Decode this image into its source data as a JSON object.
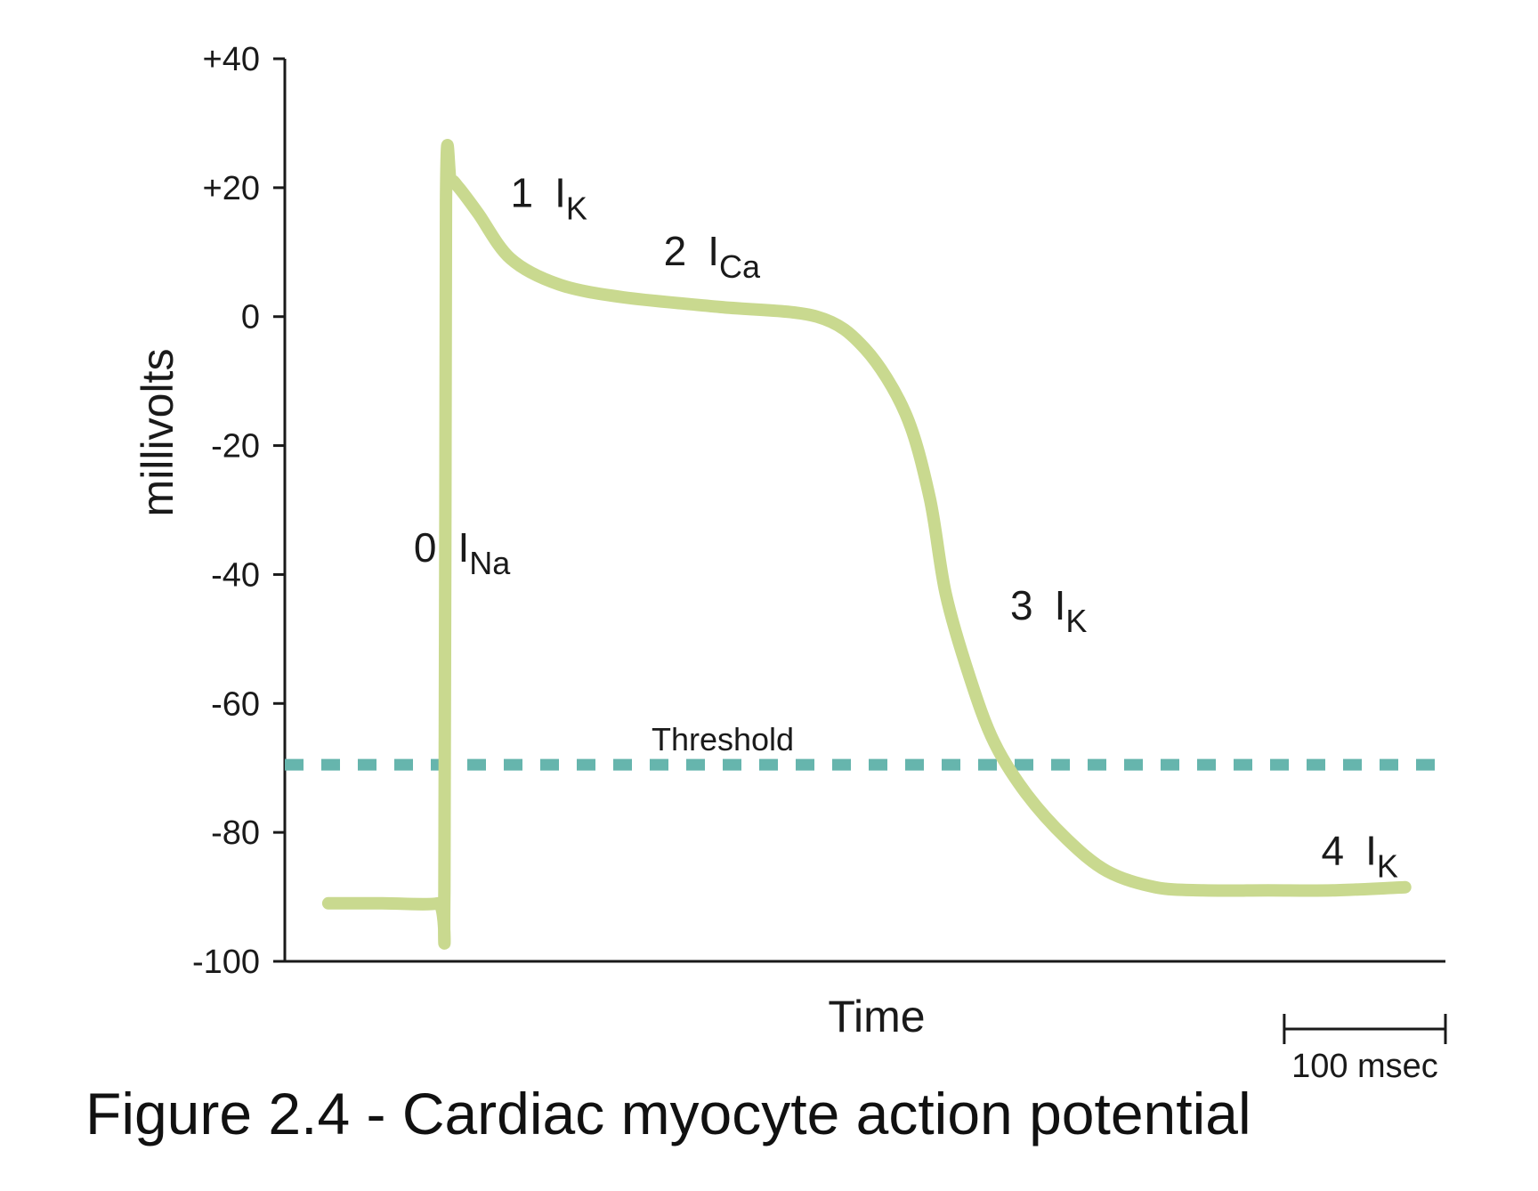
{
  "caption": "Figure 2.4 - Cardiac myocyte action potential",
  "colors": {
    "trace": "#c9d98f",
    "threshold": "#66b5ad",
    "axis": "#1a1a1a",
    "text": "#1a1a1a"
  },
  "chart_data": {
    "type": "line",
    "title": "",
    "xlabel": "Time",
    "ylabel": "millivolts",
    "ylim": [
      -100,
      40
    ],
    "xlim": [
      0,
      720
    ],
    "x_unit": "msec",
    "grid": false,
    "yticks": [
      {
        "value": 40,
        "label": "+40"
      },
      {
        "value": 20,
        "label": "+20"
      },
      {
        "value": 0,
        "label": "0"
      },
      {
        "value": -20,
        "label": "-20"
      },
      {
        "value": -40,
        "label": "-40"
      },
      {
        "value": -60,
        "label": "-60"
      },
      {
        "value": -80,
        "label": "-80"
      },
      {
        "value": -100,
        "label": "-100"
      }
    ],
    "series": [
      {
        "x": [
          27,
          60,
          95,
          99,
          100,
          103,
          108,
          120,
          140,
          170,
          210,
          270,
          330,
          360,
          385,
          400,
          410,
          425,
          440,
          460,
          485,
          510,
          540,
          570,
          610,
          650,
          695
        ],
        "y": [
          -91,
          -91,
          -91,
          -89,
          18,
          21,
          20,
          16,
          9,
          5,
          3,
          1.5,
          0,
          -5,
          -15,
          -28,
          -43,
          -56,
          -66,
          -74,
          -81,
          -86,
          -88.5,
          -89,
          -89,
          -89,
          -88.5
        ]
      }
    ],
    "threshold": {
      "label": "Threshold",
      "value": -69.5
    },
    "phase_labels": [
      {
        "phase": "0",
        "current": "I",
        "sub": "Na",
        "x": 80,
        "y": -38
      },
      {
        "phase": "1",
        "current": "I",
        "sub": "K",
        "x": 140,
        "y": 17
      },
      {
        "phase": "2",
        "current": "I",
        "sub": "Ca",
        "x": 235,
        "y": 8
      },
      {
        "phase": "3",
        "current": "I",
        "sub": "K",
        "x": 450,
        "y": -47
      },
      {
        "phase": "4",
        "current": "I",
        "sub": "K",
        "x": 643,
        "y": -85
      }
    ],
    "scale_bar": {
      "label": "100 msec",
      "value": 100
    }
  }
}
